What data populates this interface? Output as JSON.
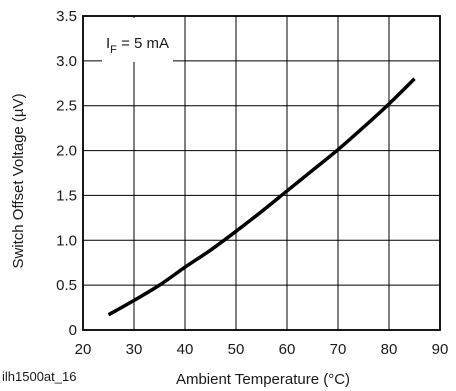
{
  "figure_id": "ilh1500at_16",
  "chart_data": {
    "type": "line",
    "title": "",
    "xlabel": "Ambient Temperature (°C)",
    "ylabel": "Switch Offset Voltage (µV)",
    "xlim": [
      20,
      90
    ],
    "ylim": [
      0,
      3.5
    ],
    "x_ticks": [
      "20",
      "30",
      "40",
      "50",
      "60",
      "70",
      "80",
      "90"
    ],
    "y_ticks": [
      "0",
      "0.5",
      "1.0",
      "1.5",
      "2.0",
      "2.5",
      "3.0",
      "3.5"
    ],
    "grid": true,
    "annotation": {
      "main": "I",
      "sub": "F",
      "rest": " = 5 mA"
    },
    "series": [
      {
        "color": "#000000",
        "x": [
          25,
          30,
          35,
          40,
          45,
          50,
          55,
          60,
          65,
          70,
          75,
          80,
          85
        ],
        "y": [
          0.17,
          0.33,
          0.5,
          0.7,
          0.89,
          1.1,
          1.32,
          1.55,
          1.78,
          2.01,
          2.26,
          2.52,
          2.8
        ]
      }
    ]
  }
}
